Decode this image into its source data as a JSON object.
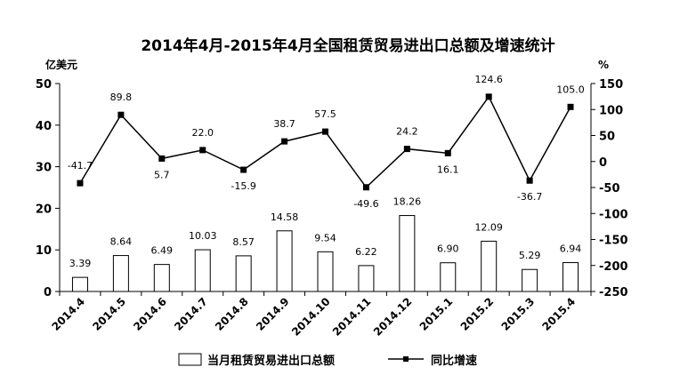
{
  "chart_data": {
    "type": "bar+line",
    "title": "2014年4月-2015年4月全国租赁贸易进出口总额及增速统计",
    "left_unit": "亿美元",
    "right_unit": "%",
    "categories": [
      "2014.4",
      "2014.5",
      "2014.6",
      "2014.7",
      "2014.8",
      "2014.9",
      "2014.10",
      "2014.11",
      "2014.12",
      "2015.1",
      "2015.2",
      "2015.3",
      "2015.4"
    ],
    "bar_series": {
      "name": "当月租赁贸易进出口总额",
      "values": [
        3.39,
        8.64,
        6.49,
        10.03,
        8.57,
        14.58,
        9.54,
        6.22,
        18.26,
        6.9,
        12.09,
        5.29,
        6.94
      ],
      "labels": [
        "3.39",
        "8.64",
        "6.49",
        "10.03",
        "8.57",
        "14.58",
        "9.54",
        "6.22",
        "18.26",
        "6.90",
        "12.09",
        "5.29",
        "6.94"
      ],
      "axis": "left"
    },
    "line_series": {
      "name": "同比增速",
      "values": [
        -41.7,
        89.8,
        5.7,
        22.0,
        -15.9,
        38.7,
        57.5,
        -49.6,
        24.2,
        16.1,
        124.6,
        -36.7,
        105.0
      ],
      "labels": [
        "-41.7",
        "89.8",
        "5.7",
        "22.0",
        "-15.9",
        "38.7",
        "57.5",
        "-49.6",
        "24.2",
        "16.1",
        "124.6",
        "-36.7",
        "105.0"
      ],
      "axis": "right"
    },
    "left_axis": {
      "range": [
        0,
        50
      ],
      "ticks": [
        "0",
        "10",
        "20",
        "30",
        "40",
        "50"
      ]
    },
    "right_axis": {
      "range": [
        -250,
        150
      ],
      "ticks": [
        "-250",
        "-200",
        "-150",
        "-100",
        "-50",
        "0",
        "50",
        "100",
        "150"
      ]
    },
    "grid": false,
    "legend_position": "bottom",
    "colors": {
      "bar_fill": "#ffffff",
      "bar_stroke": "#000000",
      "line": "#000000",
      "marker": "#000000"
    }
  }
}
